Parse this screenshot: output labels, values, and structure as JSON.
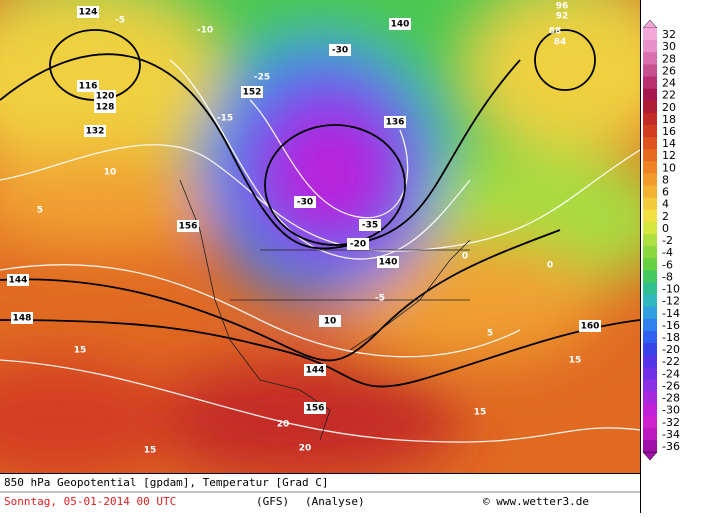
{
  "map": {
    "caption": "850 hPa Geopotential [gpdam], Temperatur [Grad C]",
    "date": "Sonntag, 05-01-2014  00 UTC",
    "model": "(GFS)",
    "run": "(Analyse)",
    "credit": "© www.wetter3.de",
    "labels": [
      "124",
      "116",
      "120",
      "128",
      "132",
      "136",
      "140",
      "144",
      "148",
      "152",
      "156",
      "160",
      "-5",
      "-10",
      "-15",
      "-20",
      "-25",
      "-30",
      "-35",
      "-30",
      "5",
      "10",
      "15",
      "20",
      "0",
      "96",
      "92",
      "88",
      "84",
      "15",
      "15",
      "20",
      "156",
      "144",
      "140",
      "-5",
      "10",
      "15",
      "5",
      "0"
    ],
    "colorbar": {
      "ticks": [
        32,
        30,
        28,
        26,
        24,
        22,
        20,
        18,
        16,
        14,
        12,
        10,
        8,
        6,
        4,
        2,
        0,
        -2,
        -4,
        -6,
        -8,
        -10,
        -12,
        -14,
        -16,
        -18,
        -20,
        -22,
        -24,
        -26,
        -28,
        -30,
        -32,
        -34,
        -36
      ],
      "colors": [
        "#f2a8d8",
        "#e890c8",
        "#d870b0",
        "#c85090",
        "#b83070",
        "#a81850",
        "#b01c34",
        "#c42a28",
        "#d43c20",
        "#e05220",
        "#e86a20",
        "#f08224",
        "#f29a2a",
        "#f2b232",
        "#f2ca3a",
        "#f0e040",
        "#d4e840",
        "#b0e040",
        "#8cd840",
        "#66d040",
        "#44c860",
        "#30c090",
        "#30b8c0",
        "#30a0e0",
        "#3080f0",
        "#3060f0",
        "#3844e8",
        "#5434e8",
        "#7030e8",
        "#8c30e8",
        "#a828e0",
        "#c020d8",
        "#d020d0",
        "#c018c0",
        "#a010a8"
      ]
    }
  }
}
